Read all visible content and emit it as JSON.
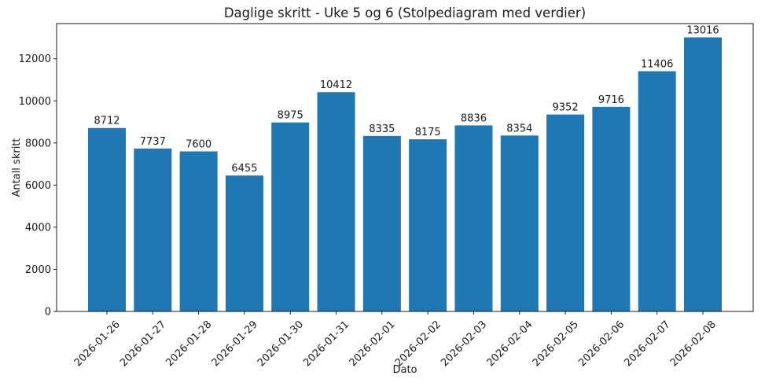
{
  "chart_data": {
    "type": "bar",
    "title": "Daglige skritt - Uke 5 og 6 (Stolpediagram med verdier)",
    "xlabel": "Dato",
    "ylabel": "Antall skritt",
    "categories": [
      "2026-01-26",
      "2026-01-27",
      "2026-01-28",
      "2026-01-29",
      "2026-01-30",
      "2026-01-31",
      "2026-02-01",
      "2026-02-02",
      "2026-02-03",
      "2026-02-04",
      "2026-02-05",
      "2026-02-06",
      "2026-02-07",
      "2026-02-08"
    ],
    "values": [
      8712,
      7737,
      7600,
      6455,
      8975,
      10412,
      8335,
      8175,
      8836,
      8354,
      9352,
      9716,
      11406,
      13016
    ],
    "bar_value_labels_shown": true,
    "yticks": [
      0,
      2000,
      4000,
      6000,
      8000,
      10000,
      12000
    ],
    "ylim": [
      0,
      13670
    ],
    "x_tick_rotation": 45,
    "grid": false,
    "legend": "none",
    "bar_color": "#1f77b4",
    "text_color": "#1a1a1a",
    "background_color": "#ffffff"
  }
}
